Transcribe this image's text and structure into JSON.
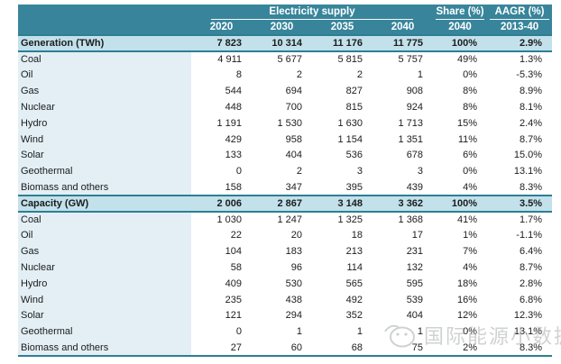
{
  "colors": {
    "teal": "#38859B",
    "border_teal": "#2E7E93",
    "section_bg": "#C2E1EB",
    "label_bg": "#E3EFF5",
    "header_text": "#FFFFFF",
    "text": "#1C1C1C",
    "watermark": "#A8ACB0"
  },
  "watermark": {
    "text": "国际能源小数据",
    "logo": "wechat-account-logo"
  },
  "chart_data": {
    "type": "table",
    "title": "Electricity supply",
    "column_groups": [
      {
        "label": "Electricity supply",
        "columns": [
          "2020",
          "2030",
          "2035",
          "2040"
        ]
      },
      {
        "label": "Share (%)",
        "columns": [
          "2040"
        ]
      },
      {
        "label": "AAGR (%)",
        "columns": [
          "2013-40"
        ]
      }
    ],
    "sections": [
      {
        "label": "Generation (TWh)",
        "values": [
          "7 823",
          "10 314",
          "11 176",
          "11 775"
        ],
        "share": "100%",
        "aagr": "2.9%",
        "rows": [
          {
            "label": "Coal",
            "values": [
              "4 911",
              "5 677",
              "5 815",
              "5 757"
            ],
            "share": "49%",
            "aagr": "1.3%"
          },
          {
            "label": "Oil",
            "values": [
              "8",
              "2",
              "2",
              "1"
            ],
            "share": "0%",
            "aagr": "-5.3%"
          },
          {
            "label": "Gas",
            "values": [
              "544",
              "694",
              "827",
              "908"
            ],
            "share": "8%",
            "aagr": "8.9%"
          },
          {
            "label": "Nuclear",
            "values": [
              "448",
              "700",
              "815",
              "924"
            ],
            "share": "8%",
            "aagr": "8.1%"
          },
          {
            "label": "Hydro",
            "values": [
              "1 191",
              "1 530",
              "1 630",
              "1 713"
            ],
            "share": "15%",
            "aagr": "2.4%"
          },
          {
            "label": "Wind",
            "values": [
              "429",
              "958",
              "1 154",
              "1 351"
            ],
            "share": "11%",
            "aagr": "8.7%"
          },
          {
            "label": "Solar",
            "values": [
              "133",
              "404",
              "536",
              "678"
            ],
            "share": "6%",
            "aagr": "15.0%"
          },
          {
            "label": "Geothermal",
            "values": [
              "0",
              "2",
              "3",
              "3"
            ],
            "share": "0%",
            "aagr": "13.1%"
          },
          {
            "label": "Biomass and others",
            "values": [
              "158",
              "347",
              "395",
              "439"
            ],
            "share": "4%",
            "aagr": "8.3%"
          }
        ]
      },
      {
        "label": "Capacity (GW)",
        "values": [
          "2 006",
          "2 867",
          "3 148",
          "3 362"
        ],
        "share": "100%",
        "aagr": "3.5%",
        "rows": [
          {
            "label": "Coal",
            "values": [
              "1 030",
              "1 247",
              "1 325",
              "1 368"
            ],
            "share": "41%",
            "aagr": "1.7%"
          },
          {
            "label": "Oil",
            "values": [
              "22",
              "20",
              "18",
              "17"
            ],
            "share": "1%",
            "aagr": "-1.1%"
          },
          {
            "label": "Gas",
            "values": [
              "104",
              "183",
              "213",
              "231"
            ],
            "share": "7%",
            "aagr": "6.4%"
          },
          {
            "label": "Nuclear",
            "values": [
              "58",
              "96",
              "114",
              "132"
            ],
            "share": "4%",
            "aagr": "8.7%"
          },
          {
            "label": "Hydro",
            "values": [
              "409",
              "530",
              "565",
              "595"
            ],
            "share": "18%",
            "aagr": "2.8%"
          },
          {
            "label": "Wind",
            "values": [
              "235",
              "438",
              "492",
              "539"
            ],
            "share": "16%",
            "aagr": "6.8%"
          },
          {
            "label": "Solar",
            "values": [
              "121",
              "294",
              "352",
              "404"
            ],
            "share": "12%",
            "aagr": "12.3%"
          },
          {
            "label": "Geothermal",
            "values": [
              "0",
              "1",
              "1",
              "1"
            ],
            "share": "0%",
            "aagr": "13.1%"
          },
          {
            "label": "Biomass and others",
            "values": [
              "27",
              "60",
              "68",
              "75"
            ],
            "share": "2%",
            "aagr": "8.3%"
          }
        ]
      }
    ]
  }
}
